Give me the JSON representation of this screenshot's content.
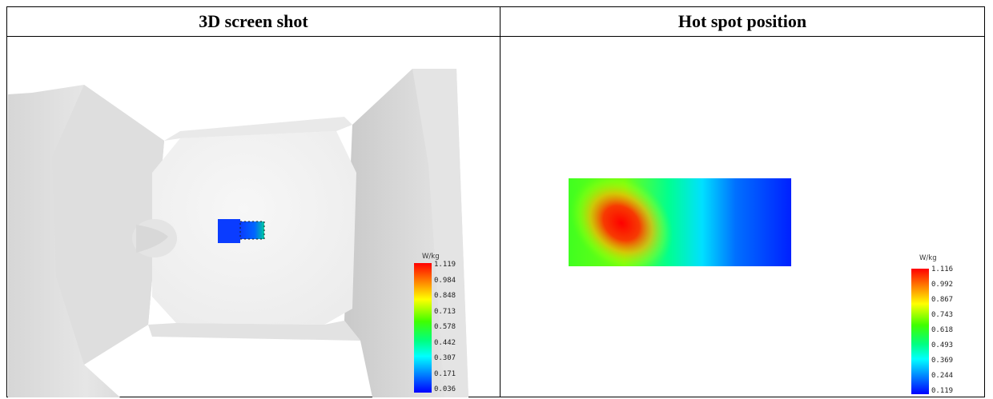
{
  "table": {
    "headers": [
      "3D screen shot",
      "Hot spot position"
    ]
  },
  "left_panel": {
    "legend": {
      "unit": "W/kg",
      "ticks": [
        "1.119",
        "0.984",
        "0.848",
        "0.713",
        "0.578",
        "0.442",
        "0.307",
        "0.171",
        "0.036"
      ]
    }
  },
  "right_panel": {
    "legend": {
      "unit": "W/kg",
      "ticks": [
        "1.116",
        "0.992",
        "0.867",
        "0.743",
        "0.618",
        "0.493",
        "0.369",
        "0.244",
        "0.119"
      ]
    }
  },
  "colors": {
    "scale_top": "#ff0000",
    "scale_bottom": "#0000ff"
  }
}
